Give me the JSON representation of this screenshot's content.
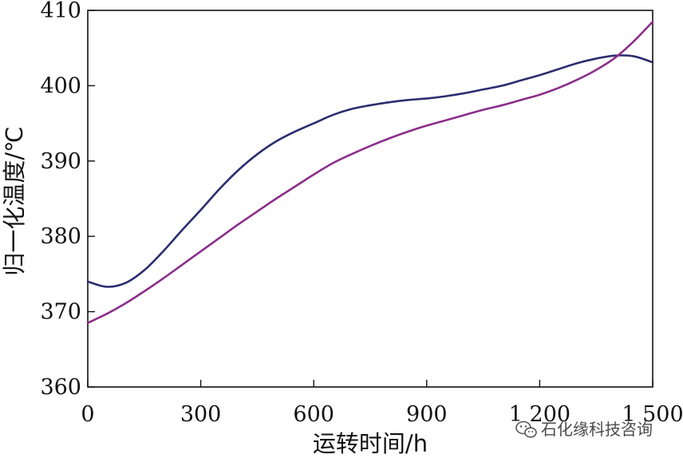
{
  "chart_data": {
    "type": "line",
    "title": "",
    "xlabel": "运转时间/h",
    "ylabel": "归一化温度/℃",
    "xlim": [
      0,
      1500
    ],
    "ylim": [
      360,
      410
    ],
    "xticks": [
      0,
      300,
      600,
      900,
      1200,
      1500
    ],
    "xtick_labels": [
      "0",
      "300",
      "600",
      "900",
      "1 200",
      "1 500"
    ],
    "yticks": [
      360,
      370,
      380,
      390,
      400,
      410
    ],
    "ytick_labels": [
      "360",
      "370",
      "380",
      "390",
      "400",
      "410"
    ],
    "grid": false,
    "legend": "none",
    "series": [
      {
        "color": "#2b2d6e",
        "x": [
          0,
          50,
          100,
          150,
          200,
          250,
          300,
          350,
          400,
          450,
          500,
          550,
          600,
          650,
          700,
          750,
          800,
          850,
          900,
          950,
          1000,
          1050,
          1100,
          1150,
          1200,
          1250,
          1300,
          1350,
          1400,
          1450,
          1500
        ],
        "y": [
          374.0,
          373.3,
          373.8,
          375.5,
          378.0,
          380.8,
          383.5,
          386.3,
          388.8,
          390.9,
          392.6,
          393.9,
          395.0,
          396.1,
          396.9,
          397.4,
          397.8,
          398.1,
          398.3,
          398.6,
          399.0,
          399.5,
          400.0,
          400.7,
          401.4,
          402.2,
          403.0,
          403.6,
          404.0,
          403.9,
          403.1
        ]
      },
      {
        "color": "#8b2e8a",
        "x": [
          0,
          50,
          100,
          150,
          200,
          250,
          300,
          350,
          400,
          450,
          500,
          550,
          600,
          650,
          700,
          750,
          800,
          850,
          900,
          950,
          1000,
          1050,
          1100,
          1150,
          1200,
          1250,
          1300,
          1350,
          1400,
          1450,
          1500
        ],
        "y": [
          368.5,
          369.7,
          371.1,
          372.7,
          374.4,
          376.2,
          378.0,
          379.8,
          381.6,
          383.3,
          385.0,
          386.6,
          388.2,
          389.7,
          390.9,
          392.0,
          393.0,
          393.9,
          394.7,
          395.4,
          396.1,
          396.8,
          397.4,
          398.1,
          398.8,
          399.7,
          400.8,
          402.1,
          403.7,
          405.9,
          408.5
        ]
      }
    ]
  },
  "watermark": {
    "text": "石化缘科技咨询",
    "icon": "wechat-icon"
  }
}
